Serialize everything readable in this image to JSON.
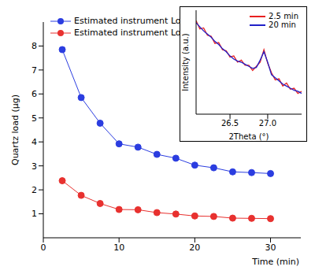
{
  "chart_data": [
    {
      "type": "line",
      "x": [
        2.5,
        5,
        7.5,
        10,
        12.5,
        15,
        17.5,
        20,
        22.5,
        25,
        27.5,
        30
      ],
      "xlim": [
        0,
        34
      ],
      "xticks": [
        0,
        10,
        20,
        30
      ],
      "ylim": [
        0,
        9
      ],
      "yticks": [
        1,
        2,
        3,
        4,
        5,
        6,
        7,
        8
      ],
      "x_label": "Time (min)",
      "y_label": "Quartz load (µg)",
      "legend": "upper left",
      "series": [
        {
          "name": "Estimated instrument LoQ",
          "color": "#2b3de0",
          "marker": "circle",
          "values": [
            7.85,
            5.85,
            4.78,
            3.92,
            3.78,
            3.48,
            3.32,
            3.03,
            2.92,
            2.75,
            2.72,
            2.68
          ]
        },
        {
          "name": "Estimated instrument LoD",
          "color": "#e8312f",
          "marker": "circle",
          "values": [
            2.38,
            1.77,
            1.43,
            1.18,
            1.17,
            1.05,
            0.99,
            0.91,
            0.89,
            0.82,
            0.81,
            0.8
          ]
        }
      ]
    },
    {
      "type": "line",
      "x": [
        26.05,
        26.1,
        26.15,
        26.2,
        26.25,
        26.3,
        26.35,
        26.4,
        26.45,
        26.5,
        26.55,
        26.6,
        26.65,
        26.7,
        26.75,
        26.8,
        26.85,
        26.9,
        26.95,
        27.0,
        27.05,
        27.1,
        27.15,
        27.2,
        27.25,
        27.3,
        27.35,
        27.4,
        27.45
      ],
      "xlim": [
        26.05,
        27.45
      ],
      "xticks": [
        26.5,
        {
          "value": 27,
          "label": "27.0"
        }
      ],
      "ylim": [
        0,
        100
      ],
      "tick_labels": "x",
      "x_label": "2Theta (°)",
      "y_label": "Intensity (a.u.)",
      "legend": "upper right",
      "series": [
        {
          "name": "2.5 min",
          "color": "#e82020",
          "marker": "none",
          "values": [
            90,
            82,
            83,
            76,
            75,
            68,
            69,
            62,
            61,
            55,
            56,
            50,
            52,
            47,
            47,
            42,
            46,
            50,
            62,
            49,
            40,
            33,
            34,
            27,
            30,
            24,
            25,
            20,
            22
          ]
        },
        {
          "name": "20 min",
          "color": "#2020c8",
          "marker": "none",
          "values": [
            88,
            84,
            80,
            77,
            74,
            70,
            67,
            63,
            60,
            56,
            53,
            51,
            50,
            48,
            46,
            44,
            45,
            52,
            60,
            50,
            38,
            35,
            32,
            29,
            27,
            25,
            23,
            22,
            20
          ]
        }
      ]
    }
  ]
}
